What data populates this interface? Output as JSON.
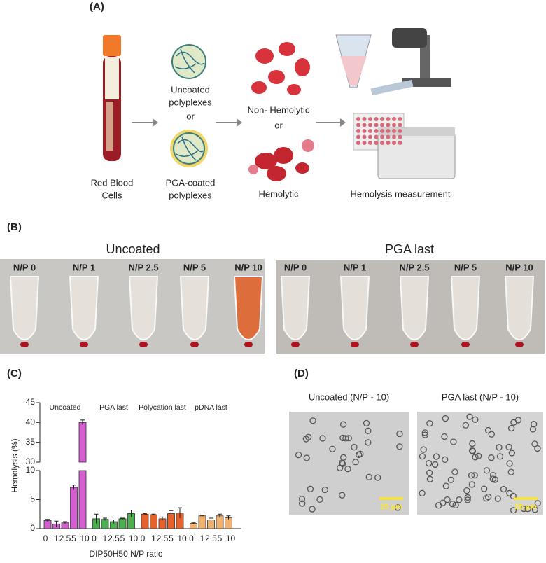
{
  "panel_labels": [
    "(A)",
    "(B)",
    "(C)",
    "(D)"
  ],
  "panel_a": {
    "rbc_label": [
      "Red Blood",
      "Cells"
    ],
    "uncoated_label": [
      "Uncoated",
      "polyplexes"
    ],
    "or_1": "or",
    "coated_label": [
      "PGA-coated",
      "polyplexes"
    ],
    "non_hemolytic": "Non- Hemolytic",
    "or_2": "or",
    "hemolytic": "Hemolytic",
    "measurement": "Hemolysis measurement"
  },
  "panel_b": {
    "photos": [
      {
        "title": "Uncoated",
        "tubes": [
          "N/P 0",
          "N/P 1",
          "N/P 2.5",
          "N/P 5",
          "N/P 10"
        ]
      },
      {
        "title": "PGA last",
        "tubes": [
          "N/P 0",
          "N/P 1",
          "N/P 2.5",
          "N/P 5",
          "N/P 10"
        ]
      }
    ]
  },
  "chart_data": {
    "type": "bar",
    "y_label": "Hemolysis (%)",
    "x_label": "DIP50H50  N/P ratio",
    "categories": [
      "0",
      "1",
      "2.5",
      "5",
      "10"
    ],
    "ylim": [
      0,
      45
    ],
    "axis_break": [
      10,
      30
    ],
    "yticks": [
      0,
      5,
      10,
      30,
      35,
      40,
      45
    ],
    "series": [
      {
        "name": "Uncoated",
        "color": "#d35fd0",
        "values": [
          1.4,
          0.8,
          1.0,
          7.1,
          40
        ],
        "errors": [
          0.2,
          0.5,
          0.2,
          0.4,
          0.6
        ]
      },
      {
        "name": "PGA last",
        "color": "#4caf50",
        "values": [
          1.7,
          1.6,
          1.2,
          1.7,
          2.6
        ],
        "errors": [
          0.8,
          0.2,
          0.3,
          0.1,
          0.6
        ]
      },
      {
        "name": "Polycation last",
        "color": "#e8602c",
        "values": [
          2.5,
          2.4,
          1.7,
          2.6,
          2.7
        ],
        "errors": [
          0.1,
          0.1,
          0.3,
          0.5,
          0.9
        ]
      },
      {
        "name": "pDNA last",
        "color": "#f0b070",
        "values": [
          0.9,
          2.2,
          1.5,
          2.2,
          1.9
        ],
        "errors": [
          0.1,
          0.1,
          0.3,
          0.3,
          0.3
        ]
      }
    ]
  },
  "panel_d": {
    "images": [
      {
        "title": "Uncoated (N/P - 10)",
        "scale_bar": "20 µm"
      },
      {
        "title": "PGA last (N/P - 10)",
        "scale_bar": "20 µm"
      }
    ]
  }
}
